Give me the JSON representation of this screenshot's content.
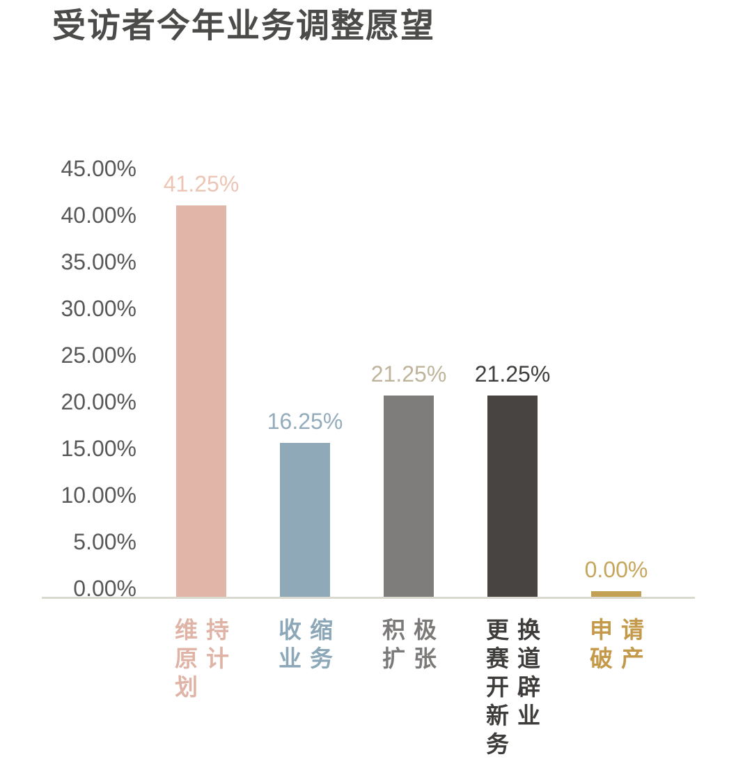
{
  "title": "受访者今年业务调整愿望",
  "y_axis": {
    "ticks": [
      {
        "label": "45.00%",
        "value": 45
      },
      {
        "label": "40.00%",
        "value": 40
      },
      {
        "label": "35.00%",
        "value": 35
      },
      {
        "label": "30.00%",
        "value": 30
      },
      {
        "label": "25.00%",
        "value": 25
      },
      {
        "label": "20.00%",
        "value": 20
      },
      {
        "label": "15.00%",
        "value": 15
      },
      {
        "label": "10.00%",
        "value": 10
      },
      {
        "label": "5.00%",
        "value": 5
      },
      {
        "label": "0.00%",
        "value": 0
      }
    ]
  },
  "chart_data": {
    "type": "bar",
    "title": "受访者今年业务调整愿望",
    "categories": [
      "维持原计划",
      "收缩业务",
      "积极扩张",
      "更换赛道开辟新业务",
      "申请破产"
    ],
    "category_lines": [
      [
        "维持",
        "原计",
        "划"
      ],
      [
        "收缩",
        "业务"
      ],
      [
        "积极",
        "扩张"
      ],
      [
        "更换",
        "赛道",
        "开辟",
        "新业",
        "务"
      ],
      [
        "申请",
        "破产"
      ]
    ],
    "values": [
      41.25,
      16.25,
      21.25,
      21.25,
      0.0
    ],
    "value_labels": [
      "41.25%",
      "16.25%",
      "21.25%",
      "21.25%",
      "0.00%"
    ],
    "bar_colors": [
      "#e1b6a8",
      "#8fa9b8",
      "#7f7d7c",
      "#474441",
      "#c3a153"
    ],
    "value_label_colors": [
      "#ecc5b5",
      "#93abbb",
      "#beb49b",
      "#3e3d3b",
      "#c6a55c"
    ],
    "category_label_colors": [
      "#dfb4a6",
      "#8ca8b8",
      "#7c7a79",
      "#3f3d3b",
      "#c49a4a"
    ],
    "xlabel": "",
    "ylabel": "",
    "ylim": [
      0,
      45
    ],
    "grid": false,
    "legend": false,
    "axis_line_color": "#d9d9cf",
    "background_color": "#ffffff"
  }
}
